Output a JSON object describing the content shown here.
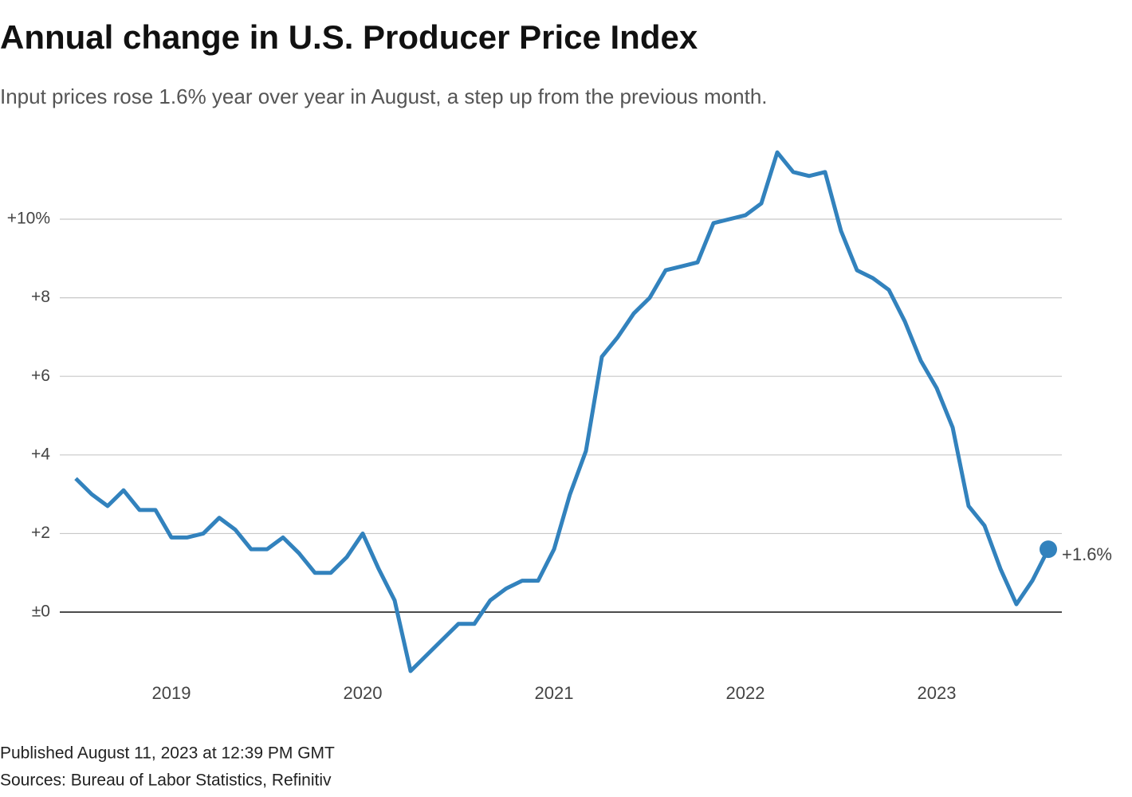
{
  "chart_data": {
    "type": "line",
    "title": "Annual change in U.S. Producer Price Index",
    "subtitle": "Input prices rose 1.6% year over year in August, a step up from the previous month.",
    "categories": [
      null,
      null,
      null,
      null,
      null,
      null,
      "2019",
      null,
      null,
      null,
      null,
      null,
      null,
      null,
      null,
      null,
      null,
      null,
      "2020",
      null,
      null,
      null,
      null,
      null,
      null,
      null,
      null,
      null,
      null,
      null,
      "2021",
      null,
      null,
      null,
      null,
      null,
      null,
      null,
      null,
      null,
      null,
      null,
      "2022",
      null,
      null,
      null,
      null,
      null,
      null,
      null,
      null,
      null,
      null,
      null,
      "2023",
      null,
      null,
      null,
      null,
      null,
      null,
      null
    ],
    "series": [
      {
        "color": "#3282bd",
        "values": [
          3.4,
          3.0,
          2.7,
          3.1,
          2.6,
          2.6,
          1.9,
          1.9,
          2.0,
          2.4,
          2.1,
          1.6,
          1.6,
          1.9,
          1.5,
          1.0,
          1.0,
          1.4,
          2.0,
          1.1,
          0.3,
          -1.5,
          -1.1,
          -0.7,
          -0.3,
          -0.3,
          0.3,
          0.6,
          0.8,
          0.8,
          1.6,
          3.0,
          4.1,
          6.5,
          7.0,
          7.6,
          8.0,
          8.7,
          8.8,
          8.9,
          9.9,
          10.0,
          10.1,
          10.4,
          11.7,
          11.2,
          11.1,
          11.2,
          9.7,
          8.7,
          8.5,
          8.2,
          7.4,
          6.4,
          5.7,
          4.7,
          2.7,
          2.2,
          1.1,
          0.2,
          0.8,
          1.6
        ],
        "value_labels": [
          null,
          null,
          null,
          null,
          null,
          null,
          null,
          null,
          null,
          null,
          null,
          null,
          null,
          null,
          null,
          null,
          null,
          null,
          null,
          null,
          null,
          null,
          null,
          null,
          null,
          null,
          null,
          null,
          null,
          null,
          null,
          null,
          null,
          null,
          null,
          null,
          null,
          null,
          null,
          null,
          null,
          null,
          null,
          null,
          null,
          null,
          null,
          null,
          null,
          null,
          null,
          null,
          null,
          null,
          null,
          null,
          null,
          null,
          null,
          null,
          null,
          "+1.6%"
        ]
      }
    ],
    "ylim": [
      -1.6,
      12
    ],
    "yticks": [
      {
        "value": 0,
        "label": "±0"
      },
      {
        "value": 2,
        "label": "+2"
      },
      {
        "value": 4,
        "label": "+4"
      },
      {
        "value": 6,
        "label": "+6"
      },
      {
        "value": 8,
        "label": "+8"
      },
      {
        "value": 10,
        "label": "+10%"
      }
    ],
    "grid": true,
    "footer": [
      "Published August 11, 2023 at 12:39 PM GMT",
      "Sources: Bureau of Labor Statistics, Refinitiv"
    ]
  }
}
